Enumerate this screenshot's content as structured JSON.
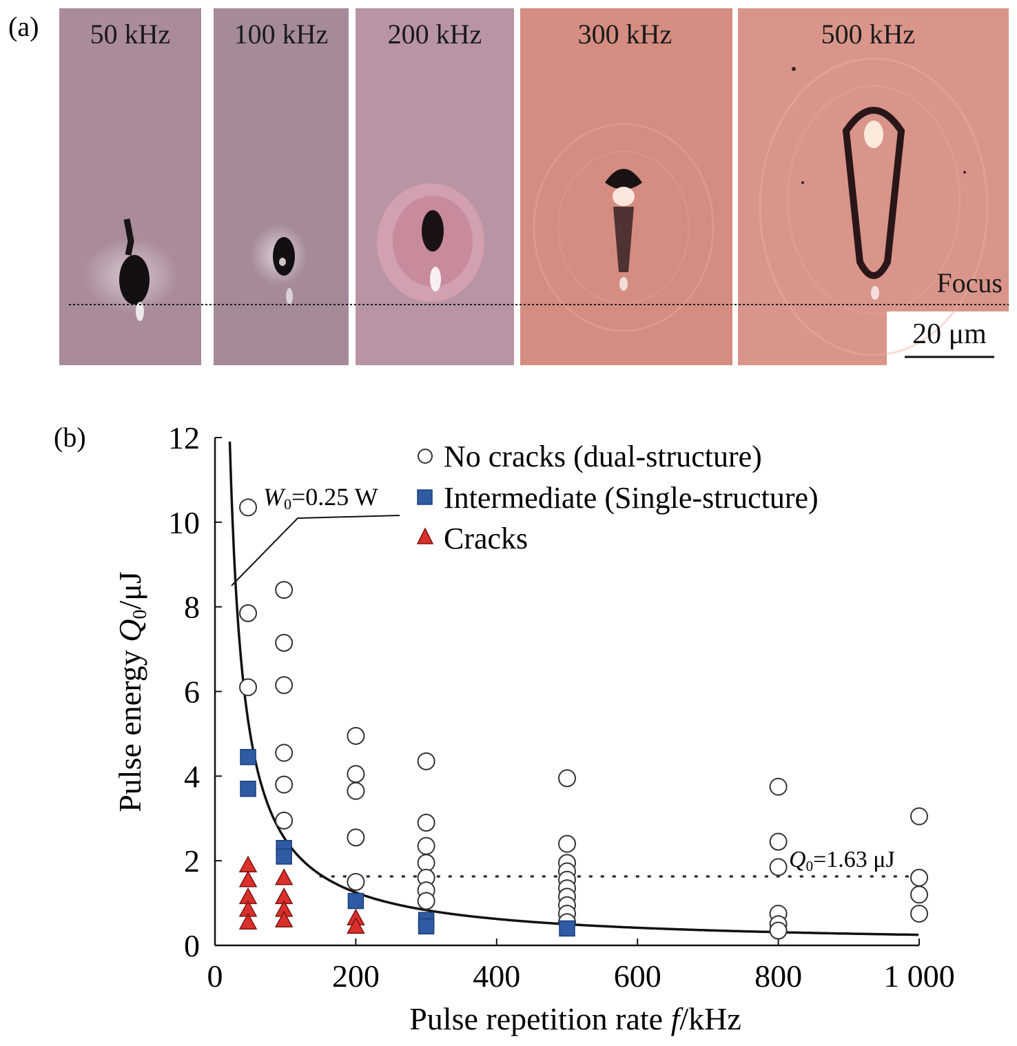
{
  "panel_a": {
    "label": "(a)",
    "frames": [
      {
        "label": "50 kHz",
        "bg": "#a98b9a"
      },
      {
        "label": "100 kHz",
        "bg": "#a58a99"
      },
      {
        "label": "200 kHz",
        "bg": "#b894a4"
      },
      {
        "label": "300 kHz",
        "bg": "#d48d80"
      },
      {
        "label": "500 kHz",
        "bg": "#d9958a"
      }
    ],
    "focus_label": "Focus",
    "scale_label": "20 μm"
  },
  "chart_data": {
    "type": "scatter",
    "panel_label": "(b)",
    "xlabel": "Pulse repetition rate f/kHz",
    "xlabel_parts": {
      "prefix": "Pulse repetition rate ",
      "var": "f",
      "suffix": "/kHz"
    },
    "ylabel": "Pulse energy Q0/μJ",
    "ylabel_parts": {
      "prefix": "Pulse energy ",
      "var": "Q",
      "sub": "0",
      "suffix": "/μJ"
    },
    "xlim": [
      0,
      1000
    ],
    "ylim": [
      0,
      12
    ],
    "xticks": [
      0,
      200,
      400,
      600,
      800,
      1000
    ],
    "xtick_labels": [
      "0",
      "200",
      "400",
      "600",
      "800",
      "1 000"
    ],
    "yticks": [
      0,
      2,
      4,
      6,
      8,
      10,
      12
    ],
    "ytick_labels": [
      "0",
      "2",
      "4",
      "6",
      "8",
      "10",
      "12"
    ],
    "legend_position": "top-right",
    "series": [
      {
        "name": "No cracks (dual-structure)",
        "marker": "open-circle",
        "color": "#ffffff",
        "points": [
          [
            47,
            10.35
          ],
          [
            47,
            7.85
          ],
          [
            47,
            6.1
          ],
          [
            98,
            8.4
          ],
          [
            98,
            7.15
          ],
          [
            98,
            6.15
          ],
          [
            98,
            4.55
          ],
          [
            98,
            3.8
          ],
          [
            98,
            2.95
          ],
          [
            200,
            4.95
          ],
          [
            200,
            4.05
          ],
          [
            200,
            3.65
          ],
          [
            200,
            2.55
          ],
          [
            200,
            1.5
          ],
          [
            300,
            4.35
          ],
          [
            300,
            2.9
          ],
          [
            300,
            2.35
          ],
          [
            300,
            1.95
          ],
          [
            300,
            1.6
          ],
          [
            300,
            1.3
          ],
          [
            300,
            1.05
          ],
          [
            500,
            3.95
          ],
          [
            500,
            2.4
          ],
          [
            500,
            1.95
          ],
          [
            500,
            1.75
          ],
          [
            500,
            1.55
          ],
          [
            500,
            1.35
          ],
          [
            500,
            1.15
          ],
          [
            500,
            0.95
          ],
          [
            500,
            0.75
          ],
          [
            500,
            0.55
          ],
          [
            800,
            3.75
          ],
          [
            800,
            2.45
          ],
          [
            800,
            1.85
          ],
          [
            800,
            0.75
          ],
          [
            800,
            0.5
          ],
          [
            800,
            0.35
          ],
          [
            1000,
            3.05
          ],
          [
            1000,
            1.6
          ],
          [
            1000,
            1.2
          ],
          [
            1000,
            0.75
          ]
        ]
      },
      {
        "name": "Intermediate (Single-structure)",
        "marker": "filled-square",
        "color": "#2e5ba3",
        "points": [
          [
            47,
            4.45
          ],
          [
            47,
            3.7
          ],
          [
            98,
            2.3
          ],
          [
            98,
            2.1
          ],
          [
            200,
            1.05
          ],
          [
            300,
            0.6
          ],
          [
            300,
            0.45
          ],
          [
            500,
            0.4
          ]
        ]
      },
      {
        "name": "Cracks",
        "marker": "filled-triangle",
        "color": "#d9302b",
        "points": [
          [
            47,
            1.9
          ],
          [
            47,
            1.55
          ],
          [
            47,
            1.15
          ],
          [
            47,
            0.85
          ],
          [
            47,
            0.55
          ],
          [
            98,
            1.6
          ],
          [
            98,
            1.15
          ],
          [
            98,
            0.85
          ],
          [
            98,
            0.6
          ],
          [
            200,
            0.65
          ],
          [
            200,
            0.45
          ]
        ]
      }
    ],
    "curve": {
      "label": "W0=0.25 W",
      "label_var": "W",
      "label_sub": "0",
      "label_rest": "=0.25 W",
      "power_W": 0.25
    },
    "hline": {
      "y": 1.63,
      "label": "Q0=1.63 μJ",
      "label_var": "Q",
      "label_sub": "0",
      "label_rest": "=1.63 μJ"
    }
  }
}
